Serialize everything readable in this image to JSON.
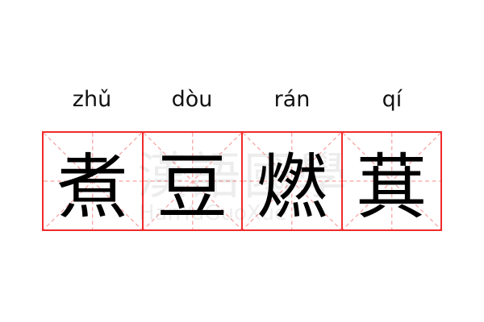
{
  "words": [
    {
      "pinyin": "zhǔ",
      "char": "煮"
    },
    {
      "pinyin": "dòu",
      "char": "豆"
    },
    {
      "pinyin": "rán",
      "char": "燃"
    },
    {
      "pinyin": "qí",
      "char": "萁"
    }
  ],
  "watermark": {
    "chinese": "漢語國學",
    "latin": "HanYuGuoXue"
  },
  "colors": {
    "grid_border": "#f02b2b",
    "guide_lines": "#f7a0a0",
    "text": "#000000"
  }
}
